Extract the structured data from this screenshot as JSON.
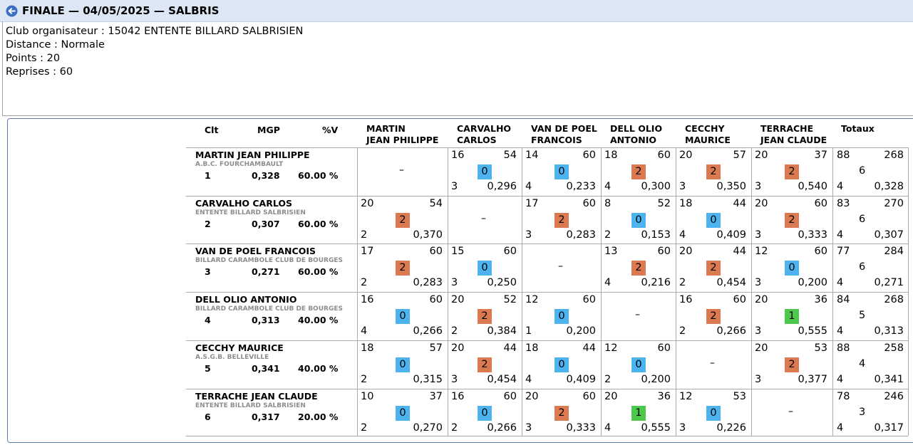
{
  "header": {
    "title": "FINALE — 04/05/2025 — SALBRIS"
  },
  "info": {
    "club": "Club organisateur : 15042 ENTENTE BILLARD SALBRISIEN",
    "distance": "Distance : Normale",
    "points": "Points : 20",
    "reprises": "Reprises : 60"
  },
  "table": {
    "col_clt": "Clt",
    "col_mgp": "MGP",
    "col_pv": "%V",
    "col_totaux": "Totaux",
    "opponents": [
      [
        "MARTIN",
        "JEAN PHILIPPE"
      ],
      [
        "CARVALHO",
        "CARLOS"
      ],
      [
        "VAN DE POEL",
        "FRANCOIS"
      ],
      [
        "DELL OLIO",
        "ANTONIO"
      ],
      [
        "CECCHY",
        "MAURICE"
      ],
      [
        "TERRACHE",
        "JEAN CLAUDE"
      ]
    ],
    "colors": {
      "0": "#4db3ef",
      "1": "#4cc94c",
      "2": "#db7a50"
    },
    "empty_mark": "–",
    "players": [
      {
        "name": "MARTIN JEAN PHILIPPE",
        "club": "A.B.C. FOURCHAMBAULT",
        "rank": "1",
        "mgp": "0,328",
        "pv": "60.00 %",
        "matches": [
          null,
          {
            "pts": "16",
            "rep": "54",
            "res": "0",
            "s": "3",
            "avg": "0,296"
          },
          {
            "pts": "14",
            "rep": "60",
            "res": "0",
            "s": "4",
            "avg": "0,233"
          },
          {
            "pts": "18",
            "rep": "60",
            "res": "2",
            "s": "4",
            "avg": "0,300"
          },
          {
            "pts": "20",
            "rep": "57",
            "res": "2",
            "s": "3",
            "avg": "0,350"
          },
          {
            "pts": "20",
            "rep": "37",
            "res": "2",
            "s": "3",
            "avg": "0,540"
          }
        ],
        "total": {
          "pts": "88",
          "rep": "268",
          "res": "6",
          "s": "4",
          "avg": "0,328"
        }
      },
      {
        "name": "CARVALHO CARLOS",
        "club": "ENTENTE BILLARD SALBRISIEN",
        "rank": "2",
        "mgp": "0,307",
        "pv": "60.00 %",
        "matches": [
          {
            "pts": "20",
            "rep": "54",
            "res": "2",
            "s": "2",
            "avg": "0,370"
          },
          null,
          {
            "pts": "17",
            "rep": "60",
            "res": "2",
            "s": "3",
            "avg": "0,283"
          },
          {
            "pts": "8",
            "rep": "52",
            "res": "0",
            "s": "2",
            "avg": "0,153"
          },
          {
            "pts": "18",
            "rep": "44",
            "res": "0",
            "s": "4",
            "avg": "0,409"
          },
          {
            "pts": "20",
            "rep": "60",
            "res": "2",
            "s": "3",
            "avg": "0,333"
          }
        ],
        "total": {
          "pts": "83",
          "rep": "270",
          "res": "6",
          "s": "4",
          "avg": "0,307"
        }
      },
      {
        "name": "VAN DE POEL FRANCOIS",
        "club": "BILLARD CARAMBOLE CLUB DE BOURGES",
        "rank": "3",
        "mgp": "0,271",
        "pv": "60.00 %",
        "matches": [
          {
            "pts": "17",
            "rep": "60",
            "res": "2",
            "s": "2",
            "avg": "0,283"
          },
          {
            "pts": "15",
            "rep": "60",
            "res": "0",
            "s": "3",
            "avg": "0,250"
          },
          null,
          {
            "pts": "13",
            "rep": "60",
            "res": "2",
            "s": "4",
            "avg": "0,216"
          },
          {
            "pts": "20",
            "rep": "44",
            "res": "2",
            "s": "2",
            "avg": "0,454"
          },
          {
            "pts": "12",
            "rep": "60",
            "res": "0",
            "s": "3",
            "avg": "0,200"
          }
        ],
        "total": {
          "pts": "77",
          "rep": "284",
          "res": "6",
          "s": "4",
          "avg": "0,271"
        }
      },
      {
        "name": "DELL OLIO ANTONIO",
        "club": "BILLARD CARAMBOLE CLUB DE BOURGES",
        "rank": "4",
        "mgp": "0,313",
        "pv": "40.00 %",
        "matches": [
          {
            "pts": "16",
            "rep": "60",
            "res": "0",
            "s": "4",
            "avg": "0,266"
          },
          {
            "pts": "20",
            "rep": "52",
            "res": "2",
            "s": "2",
            "avg": "0,384"
          },
          {
            "pts": "12",
            "rep": "60",
            "res": "0",
            "s": "1",
            "avg": "0,200"
          },
          null,
          {
            "pts": "16",
            "rep": "60",
            "res": "2",
            "s": "2",
            "avg": "0,266"
          },
          {
            "pts": "20",
            "rep": "36",
            "res": "1",
            "s": "3",
            "avg": "0,555"
          }
        ],
        "total": {
          "pts": "84",
          "rep": "268",
          "res": "5",
          "s": "4",
          "avg": "0,313"
        }
      },
      {
        "name": "CECCHY MAURICE",
        "club": "A.S.G.B. BELLEVILLE",
        "rank": "5",
        "mgp": "0,341",
        "pv": "40.00 %",
        "matches": [
          {
            "pts": "18",
            "rep": "57",
            "res": "0",
            "s": "2",
            "avg": "0,315"
          },
          {
            "pts": "20",
            "rep": "44",
            "res": "2",
            "s": "3",
            "avg": "0,454"
          },
          {
            "pts": "18",
            "rep": "44",
            "res": "0",
            "s": "4",
            "avg": "0,409"
          },
          {
            "pts": "12",
            "rep": "60",
            "res": "0",
            "s": "2",
            "avg": "0,200"
          },
          null,
          {
            "pts": "20",
            "rep": "53",
            "res": "2",
            "s": "3",
            "avg": "0,377"
          }
        ],
        "total": {
          "pts": "88",
          "rep": "258",
          "res": "4",
          "s": "4",
          "avg": "0,341"
        }
      },
      {
        "name": "TERRACHE JEAN CLAUDE",
        "club": "ENTENTE BILLARD SALBRISIEN",
        "rank": "6",
        "mgp": "0,317",
        "pv": "20.00 %",
        "matches": [
          {
            "pts": "10",
            "rep": "37",
            "res": "0",
            "s": "2",
            "avg": "0,270"
          },
          {
            "pts": "16",
            "rep": "60",
            "res": "0",
            "s": "2",
            "avg": "0,266"
          },
          {
            "pts": "20",
            "rep": "60",
            "res": "2",
            "s": "3",
            "avg": "0,333"
          },
          {
            "pts": "20",
            "rep": "36",
            "res": "1",
            "s": "4",
            "avg": "0,555"
          },
          {
            "pts": "12",
            "rep": "53",
            "res": "0",
            "s": "3",
            "avg": "0,226"
          },
          null
        ],
        "total": {
          "pts": "78",
          "rep": "246",
          "res": "3",
          "s": "4",
          "avg": "0,317"
        }
      }
    ]
  }
}
